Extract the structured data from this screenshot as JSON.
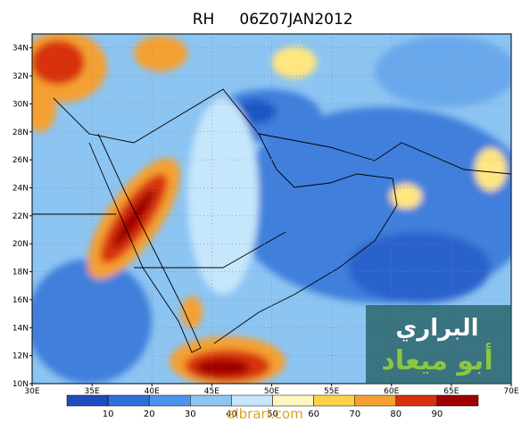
{
  "header": {
    "variable": "RH",
    "time": "06Z07JAN2012"
  },
  "map": {
    "lon_labels": [
      "30E",
      "35E",
      "40E",
      "45E",
      "50E",
      "55E",
      "60E",
      "65E",
      "70E"
    ],
    "lat_labels": [
      "10N",
      "12N",
      "14N",
      "16N",
      "18N",
      "20N",
      "22N",
      "24N",
      "26N",
      "28N",
      "30N",
      "32N",
      "34N"
    ]
  },
  "colorbar": {
    "labels": [
      "10",
      "20",
      "30",
      "40",
      "50",
      "60",
      "70",
      "80",
      "90"
    ]
  },
  "watermark": {
    "line1": "البراري",
    "line2": "أبو ميعاد",
    "url": "albrari.com"
  }
}
